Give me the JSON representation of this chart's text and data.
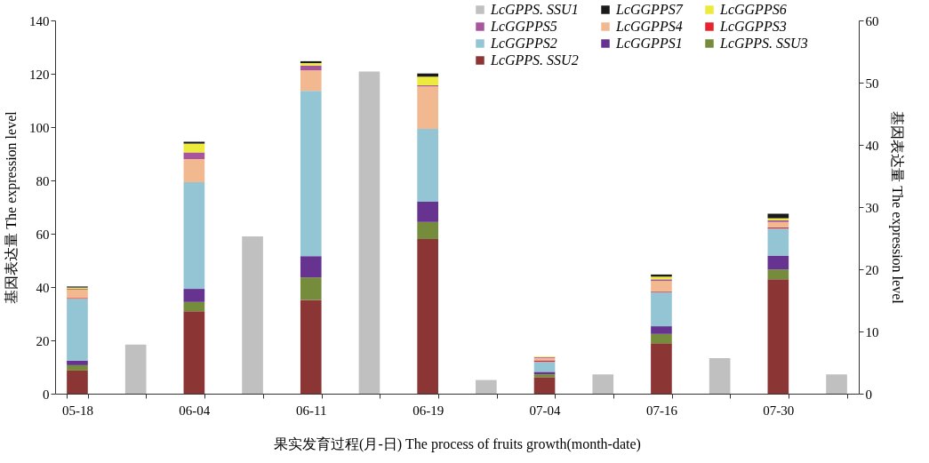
{
  "chart_data": {
    "type": "bar",
    "stacked": true,
    "grid": false,
    "legend": "top right",
    "xlabel": "果实发育过程(月-日) The process of fruits growth(month-date)",
    "ylabel": "基因表达量 The expression level",
    "y2label": "基因表达量 The expression level",
    "categories": [
      "05-18",
      null,
      "06-04",
      null,
      "06-11",
      null,
      "06-19",
      null,
      "07-04",
      null,
      "07-16",
      null,
      "07-30",
      null
    ],
    "ylim": [
      0,
      140
    ],
    "yticks": [
      0,
      20,
      40,
      60,
      80,
      100,
      120,
      140
    ],
    "y2lim": [
      0,
      60
    ],
    "y2ticks": [
      0,
      10,
      20,
      30,
      40,
      50,
      60
    ],
    "series": [
      {
        "name": "LcGPPS. SSU2",
        "color": "#8c3535",
        "values": [
          8.7,
          null,
          30.9,
          null,
          35.2,
          null,
          58,
          null,
          6.2,
          null,
          18.9,
          null,
          42.9,
          null
        ]
      },
      {
        "name": "LcGPPS. SSU3",
        "color": "#758c3c",
        "values": [
          2.0,
          null,
          3.5,
          null,
          8.4,
          null,
          6.4,
          null,
          1.1,
          null,
          3.5,
          null,
          3.7,
          null
        ]
      },
      {
        "name": "LcGGPPS1",
        "color": "#663390",
        "values": [
          1.7,
          null,
          4.9,
          null,
          8.0,
          null,
          7.6,
          null,
          0.9,
          null,
          2.9,
          null,
          5.2,
          null
        ]
      },
      {
        "name": "LcGGPPS2",
        "color": "#93c5d4",
        "values": [
          23.2,
          null,
          40.0,
          null,
          62.0,
          null,
          27.3,
          null,
          3.8,
          null,
          12.8,
          null,
          10.2,
          null
        ]
      },
      {
        "name": "LcGGPPS3",
        "color": "#e8212a",
        "values": [
          0.3,
          null,
          null,
          null,
          null,
          null,
          null,
          null,
          0.5,
          null,
          0.3,
          null,
          0.4,
          null
        ]
      },
      {
        "name": "LcGGPPS4",
        "color": "#f2b990",
        "values": [
          3.1,
          null,
          8.7,
          null,
          7.7,
          null,
          16.0,
          null,
          0.9,
          null,
          3.9,
          null,
          2.0,
          null
        ]
      },
      {
        "name": "LcGGPPS5",
        "color": "#a9559e",
        "values": [
          0.3,
          null,
          2.5,
          null,
          1.8,
          null,
          0.4,
          null,
          0.3,
          null,
          0.6,
          null,
          0.6,
          null
        ]
      },
      {
        "name": "LcGGPPS6",
        "color": "#ecea3a",
        "values": [
          0.5,
          null,
          3.3,
          null,
          0.9,
          null,
          3.2,
          null,
          0.2,
          null,
          1.0,
          null,
          0.8,
          null
        ]
      },
      {
        "name": "LcGGPPS7",
        "color": "#1a1a1a",
        "values": [
          0.4,
          null,
          0.7,
          null,
          0.7,
          null,
          1.2,
          null,
          null,
          null,
          0.8,
          null,
          1.7,
          null
        ]
      },
      {
        "name": "LcGPPS. SSU1",
        "color": "#c0c0c0",
        "axis": "y2",
        "values": [
          null,
          7.9,
          null,
          25.3,
          null,
          51.8,
          null,
          2.2,
          null,
          3.1,
          null,
          5.7,
          null,
          3.1
        ]
      }
    ]
  }
}
